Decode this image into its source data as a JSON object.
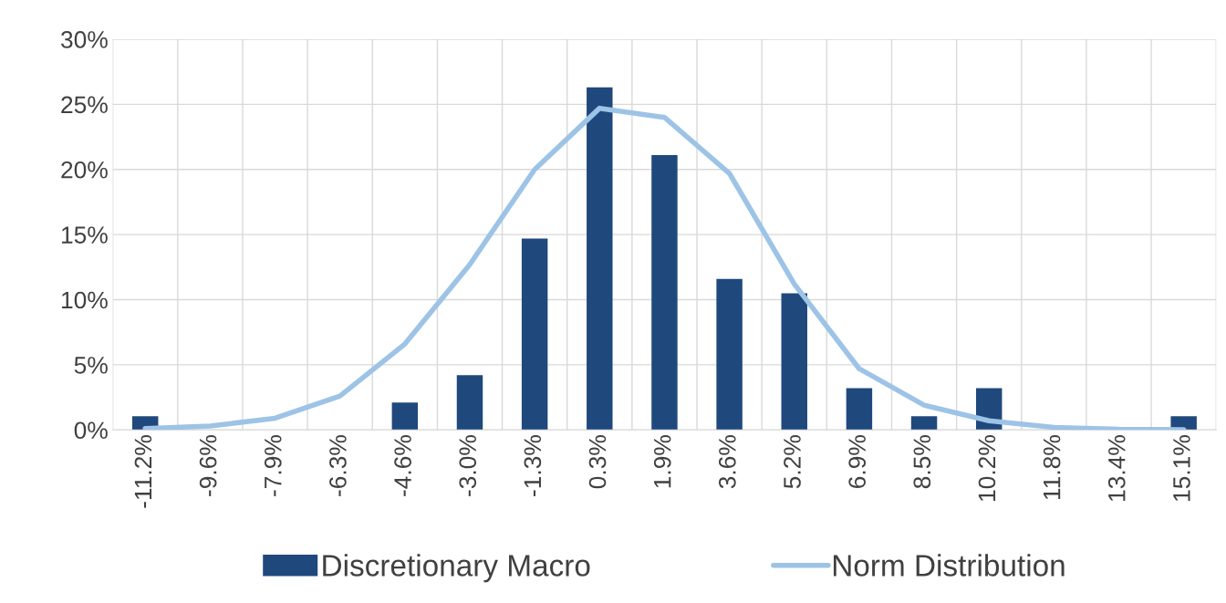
{
  "chart_data": {
    "type": "bar",
    "categories": [
      "-11.2%",
      "-9.6%",
      "-7.9%",
      "-6.3%",
      "-4.6%",
      "-3.0%",
      "-1.3%",
      "0.3%",
      "1.9%",
      "3.6%",
      "5.2%",
      "6.9%",
      "8.5%",
      "10.2%",
      "11.8%",
      "13.4%",
      "15.1%"
    ],
    "series": [
      {
        "name": "Discretionary Macro",
        "color": "#1f497d",
        "values": [
          1.05,
          0,
          0,
          0,
          2.1,
          4.2,
          14.7,
          26.3,
          21.1,
          11.6,
          10.5,
          3.2,
          1.05,
          3.2,
          0,
          0,
          1.05
        ]
      },
      {
        "name": "Norm Distribution",
        "type": "line",
        "color": "#9dc3e6",
        "values": [
          0.1,
          0.3,
          0.9,
          2.6,
          6.6,
          12.7,
          20.0,
          24.7,
          24.0,
          19.7,
          11.2,
          4.7,
          1.9,
          0.7,
          0.2,
          0.05,
          0.02
        ]
      }
    ],
    "ylim": [
      0,
      30
    ],
    "yticks": [
      {
        "value": 0,
        "label": "0%"
      },
      {
        "value": 5,
        "label": "5%"
      },
      {
        "value": 10,
        "label": "10%"
      },
      {
        "value": 15,
        "label": "15%"
      },
      {
        "value": 20,
        "label": "20%"
      },
      {
        "value": 25,
        "label": "25%"
      },
      {
        "value": 30,
        "label": "30%"
      }
    ],
    "grid": true,
    "legend": "bottom"
  }
}
